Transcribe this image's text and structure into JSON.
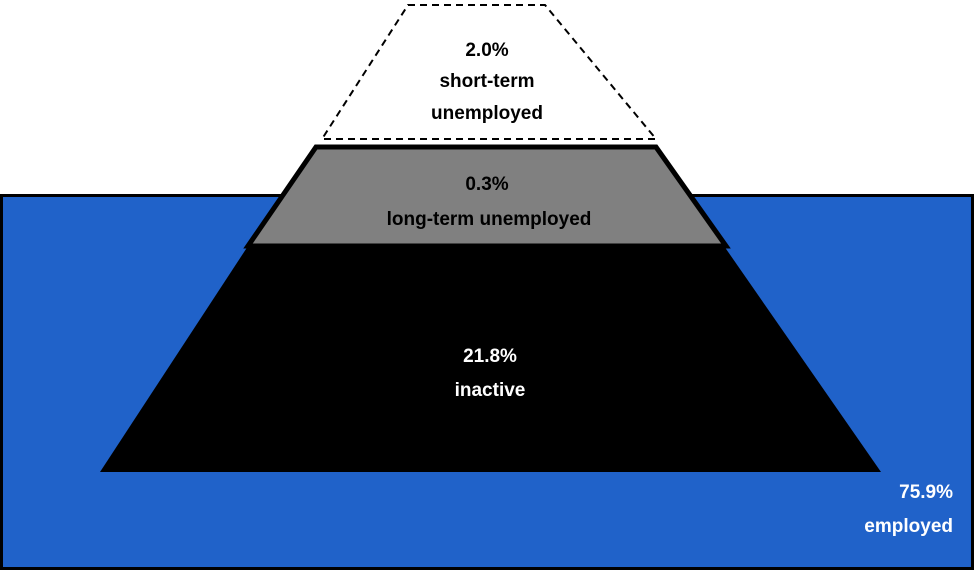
{
  "segments": {
    "short_term": {
      "value": "2.0%",
      "label_line1": "short-term",
      "label_line2": "unemployed"
    },
    "long_term": {
      "value": "0.3%",
      "label": "long-term unemployed"
    },
    "inactive": {
      "value": "21.8%",
      "label": "inactive"
    },
    "employed": {
      "value": "75.9%",
      "label": "employed"
    }
  },
  "colors": {
    "water": "#2062c9",
    "long_term_fill": "#808080",
    "inactive_fill": "#000000",
    "short_term_fill": "#ffffff",
    "outline": "#000000"
  }
}
